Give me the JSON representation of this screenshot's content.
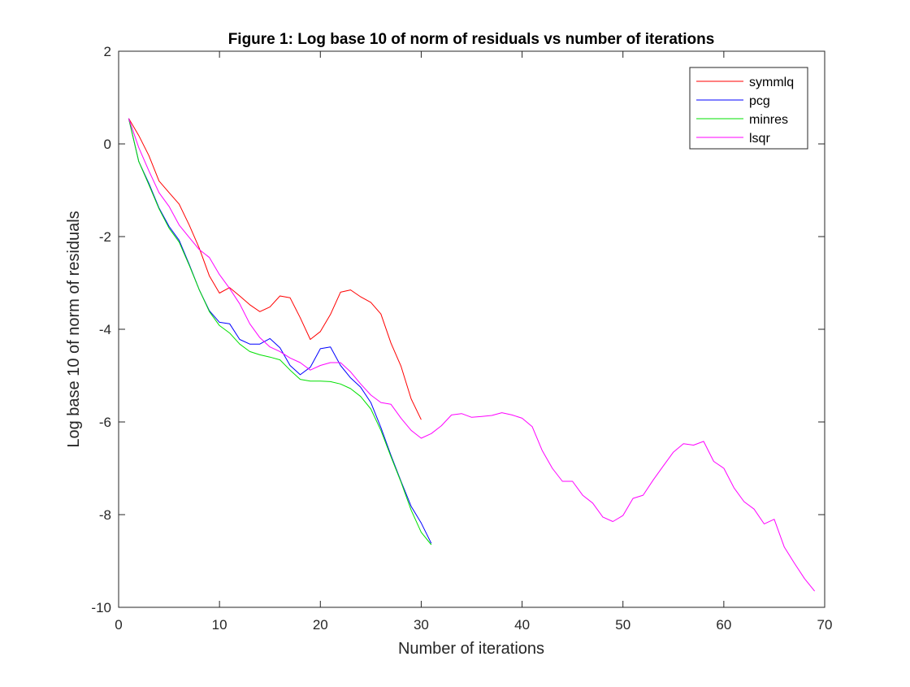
{
  "chart_data": {
    "type": "line",
    "title": "Figure 1: Log base 10 of norm of residuals vs number of iterations",
    "xlabel": "Number of iterations",
    "ylabel": "Log base 10 of norm of residuals",
    "xlim": [
      0,
      70
    ],
    "ylim": [
      -10,
      2
    ],
    "xticks": [
      0,
      10,
      20,
      30,
      40,
      50,
      60,
      70
    ],
    "yticks": [
      2,
      0,
      -2,
      -4,
      -6,
      -8,
      -10
    ],
    "grid": false,
    "legend_position": "top-right",
    "series": [
      {
        "name": "symmlq",
        "color": "#ff0000",
        "x": [
          1,
          2,
          3,
          4,
          5,
          6,
          7,
          8,
          9,
          10,
          11,
          12,
          13,
          14,
          15,
          16,
          17,
          18,
          19,
          20,
          21,
          22,
          23,
          24,
          25,
          26,
          27,
          28,
          29,
          30
        ],
        "y": [
          0.55,
          0.18,
          -0.25,
          -0.8,
          -1.05,
          -1.3,
          -1.75,
          -2.25,
          -2.85,
          -3.22,
          -3.1,
          -3.28,
          -3.47,
          -3.62,
          -3.52,
          -3.28,
          -3.32,
          -3.75,
          -4.22,
          -4.05,
          -3.68,
          -3.2,
          -3.15,
          -3.3,
          -3.42,
          -3.67,
          -4.3,
          -4.8,
          -5.5,
          -5.95
        ]
      },
      {
        "name": "pcg",
        "color": "#0000ff",
        "x": [
          1,
          2,
          3,
          4,
          5,
          6,
          7,
          8,
          9,
          10,
          11,
          12,
          13,
          14,
          15,
          16,
          17,
          18,
          19,
          20,
          21,
          22,
          23,
          24,
          25,
          26,
          27,
          28,
          29,
          30,
          31
        ],
        "y": [
          0.55,
          -0.38,
          -0.85,
          -1.38,
          -1.78,
          -2.08,
          -2.6,
          -3.15,
          -3.6,
          -3.85,
          -3.88,
          -4.22,
          -4.32,
          -4.32,
          -4.2,
          -4.4,
          -4.78,
          -4.98,
          -4.82,
          -4.42,
          -4.38,
          -4.78,
          -5.05,
          -5.25,
          -5.58,
          -6.12,
          -6.72,
          -7.28,
          -7.82,
          -8.18,
          -8.62
        ]
      },
      {
        "name": "minres",
        "color": "#00e000",
        "x": [
          1,
          2,
          3,
          4,
          5,
          6,
          7,
          8,
          9,
          10,
          11,
          12,
          13,
          14,
          15,
          16,
          17,
          18,
          19,
          20,
          21,
          22,
          23,
          24,
          25,
          26,
          27,
          28,
          29,
          30,
          31
        ],
        "y": [
          0.55,
          -0.38,
          -0.88,
          -1.4,
          -1.82,
          -2.12,
          -2.62,
          -3.15,
          -3.62,
          -3.92,
          -4.08,
          -4.32,
          -4.48,
          -4.55,
          -4.6,
          -4.66,
          -4.88,
          -5.08,
          -5.12,
          -5.12,
          -5.13,
          -5.18,
          -5.28,
          -5.45,
          -5.72,
          -6.18,
          -6.75,
          -7.3,
          -7.9,
          -8.38,
          -8.65
        ]
      },
      {
        "name": "lsqr",
        "color": "#ff00ff",
        "x": [
          1,
          2,
          3,
          4,
          5,
          6,
          7,
          8,
          9,
          10,
          11,
          12,
          13,
          14,
          15,
          16,
          17,
          18,
          19,
          20,
          21,
          22,
          23,
          24,
          25,
          26,
          27,
          28,
          29,
          30,
          31,
          32,
          33,
          34,
          35,
          36,
          37,
          38,
          39,
          40,
          41,
          42,
          43,
          44,
          45,
          46,
          47,
          48,
          49,
          50,
          51,
          52,
          53,
          54,
          55,
          56,
          57,
          58,
          59,
          60,
          61,
          62,
          63,
          64,
          65,
          66,
          67,
          68,
          69
        ],
        "y": [
          0.55,
          -0.08,
          -0.58,
          -1.05,
          -1.35,
          -1.75,
          -2.02,
          -2.28,
          -2.45,
          -2.82,
          -3.12,
          -3.45,
          -3.88,
          -4.18,
          -4.38,
          -4.48,
          -4.62,
          -4.72,
          -4.88,
          -4.78,
          -4.72,
          -4.72,
          -4.92,
          -5.18,
          -5.42,
          -5.58,
          -5.62,
          -5.92,
          -6.18,
          -6.35,
          -6.25,
          -6.08,
          -5.85,
          -5.82,
          -5.9,
          -5.88,
          -5.86,
          -5.8,
          -5.85,
          -5.92,
          -6.1,
          -6.62,
          -7.0,
          -7.28,
          -7.28,
          -7.58,
          -7.75,
          -8.05,
          -8.15,
          -8.02,
          -7.65,
          -7.58,
          -7.25,
          -6.95,
          -6.65,
          -6.47,
          -6.5,
          -6.42,
          -6.85,
          -7.0,
          -7.42,
          -7.72,
          -7.88,
          -8.2,
          -8.1,
          -8.7,
          -9.05,
          -9.38,
          -9.65
        ]
      }
    ]
  }
}
